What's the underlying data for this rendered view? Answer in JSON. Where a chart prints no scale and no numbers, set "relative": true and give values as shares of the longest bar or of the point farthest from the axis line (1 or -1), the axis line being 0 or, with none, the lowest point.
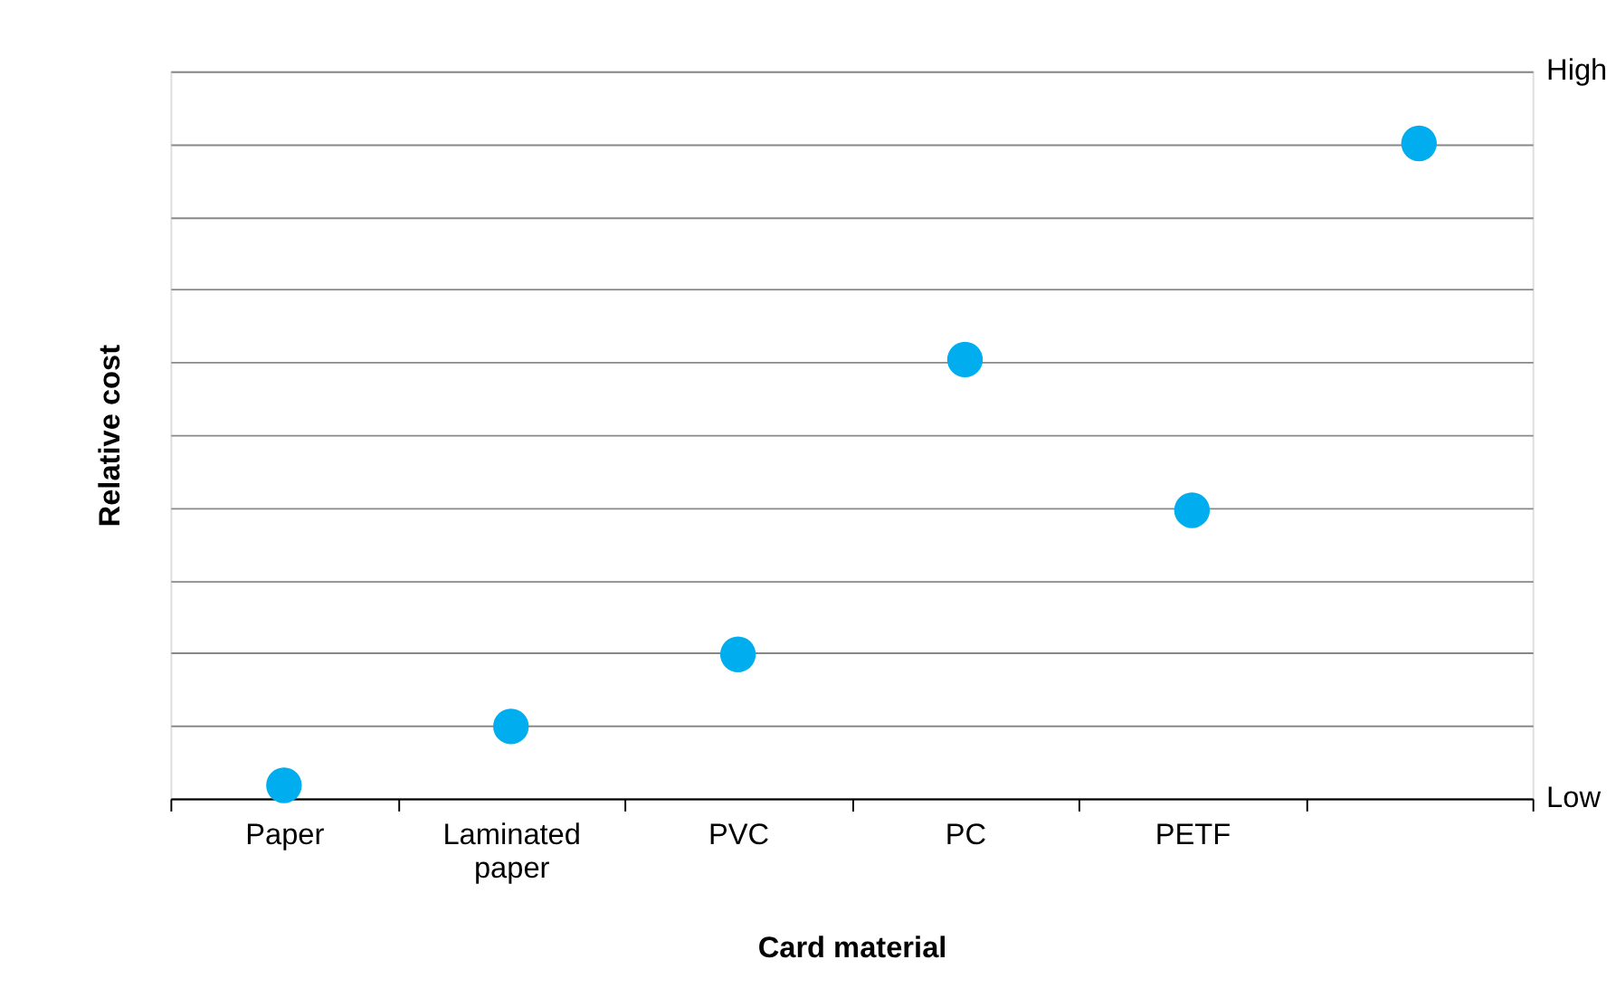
{
  "chart_data": {
    "type": "scatter",
    "xlabel": "Card material",
    "ylabel": "Relative cost",
    "categories": [
      "Paper",
      "Laminated paper",
      "PVC",
      "PC",
      "PETF",
      null
    ],
    "series": [
      {
        "color": "#00aeef",
        "values": [
          0.02,
          0.11,
          0.22,
          0.67,
          0.44,
          1
        ]
      }
    ],
    "relative": true,
    "annotations": [
      "Low",
      "High"
    ],
    "grid": "y",
    "legend": false,
    "marker": "circle"
  }
}
